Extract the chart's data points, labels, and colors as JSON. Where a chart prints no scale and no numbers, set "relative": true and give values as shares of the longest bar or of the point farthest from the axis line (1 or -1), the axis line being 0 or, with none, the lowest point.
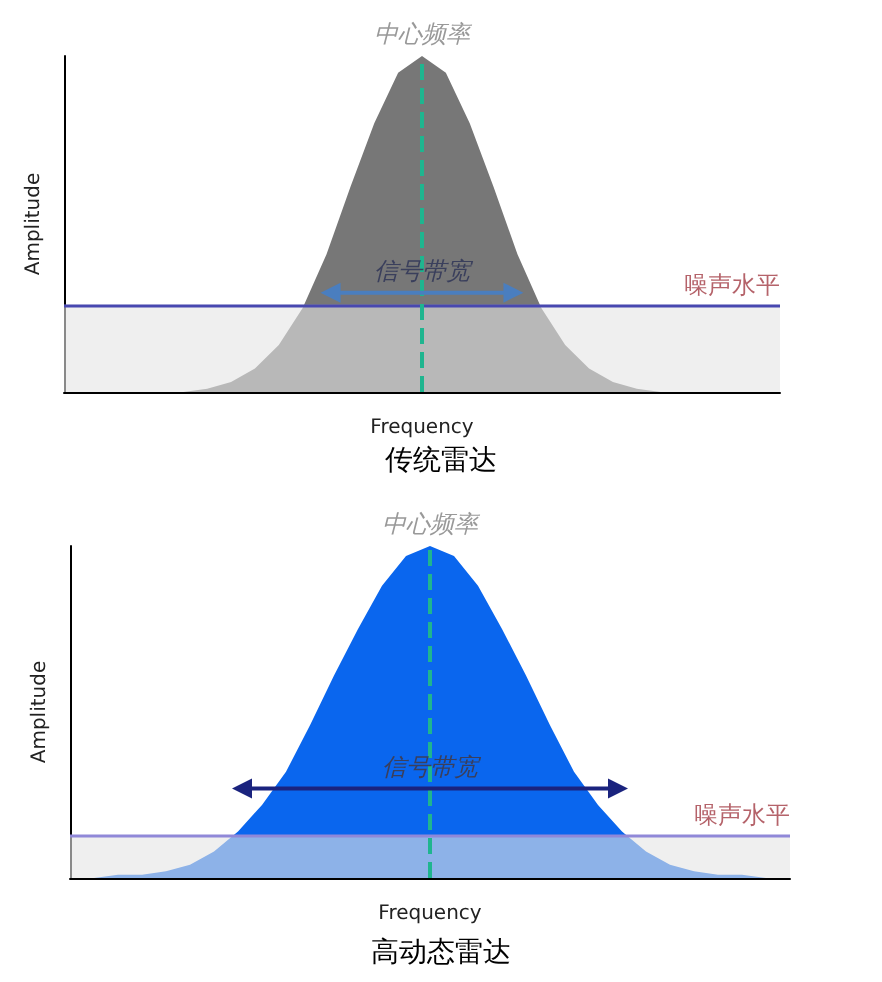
{
  "chart_data": [
    {
      "type": "area",
      "title": "传统雷达",
      "xlabel": "Frequency",
      "ylabel": "Amplitude",
      "relative": true,
      "categories": [
        null,
        null,
        null,
        null,
        null,
        null,
        null,
        null,
        null,
        null,
        null,
        null,
        null,
        null,
        null,
        null,
        null,
        null,
        null,
        null,
        null,
        null,
        null,
        null,
        null,
        null,
        null,
        null,
        null,
        null,
        null
      ],
      "series": [
        {
          "color": "#777777",
          "values": [
            0,
            0,
            0,
            0,
            0,
            0,
            0.01,
            0.03,
            0.07,
            0.14,
            0.25,
            0.41,
            0.61,
            0.8,
            0.95,
            1,
            0.95,
            0.8,
            0.61,
            0.41,
            0.25,
            0.14,
            0.07,
            0.03,
            0.01,
            0,
            0,
            0,
            0,
            0,
            0
          ]
        }
      ],
      "ref_lines": [
        {
          "axis": "y",
          "value": 0.26,
          "label": "噪声水平",
          "color": "#4848b0",
          "line_style": "solid"
        },
        {
          "axis": "x",
          "label": "中心频率",
          "color": "#1fb58f",
          "line_style": "dashed"
        }
      ],
      "bands": [
        {
          "axis": "y",
          "from": 0,
          "to": 0.26,
          "color": "#e4e4e4"
        }
      ],
      "annotations": [
        "信号带宽"
      ]
    },
    {
      "type": "area",
      "title": "高动态雷达",
      "xlabel": "Frequency",
      "ylabel": "Amplitude",
      "relative": true,
      "categories": [
        null,
        null,
        null,
        null,
        null,
        null,
        null,
        null,
        null,
        null,
        null,
        null,
        null,
        null,
        null,
        null,
        null,
        null,
        null,
        null,
        null,
        null,
        null,
        null,
        null,
        null,
        null,
        null,
        null,
        null,
        null
      ],
      "series": [
        {
          "color": "#0a66ee",
          "values": [
            0,
            0,
            0.01,
            0.01,
            0.02,
            0.04,
            0.08,
            0.14,
            0.22,
            0.32,
            0.46,
            0.61,
            0.75,
            0.88,
            0.97,
            1,
            0.97,
            0.88,
            0.75,
            0.61,
            0.46,
            0.32,
            0.22,
            0.14,
            0.08,
            0.04,
            0.02,
            0.01,
            0.01,
            0,
            0
          ]
        }
      ],
      "ref_lines": [
        {
          "axis": "y",
          "value": 0.125,
          "label": "噪声水平",
          "color": "#9088d8",
          "line_style": "solid"
        },
        {
          "axis": "x",
          "label": "中心频率",
          "color": "#1fb58f",
          "line_style": "dashed"
        }
      ],
      "bands": [
        {
          "axis": "y",
          "from": 0,
          "to": 0.125,
          "color": "#e4e4e4"
        }
      ],
      "annotations": [
        "信号带宽"
      ]
    }
  ]
}
